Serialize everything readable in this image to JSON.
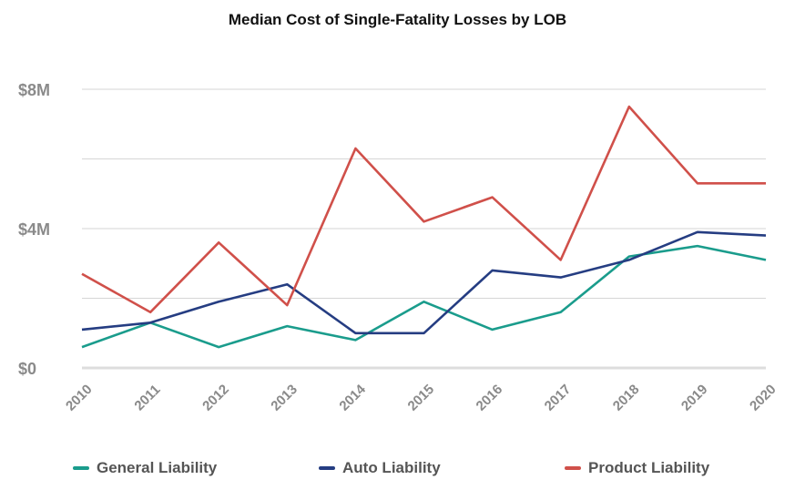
{
  "chart_data": {
    "type": "line",
    "title": "Median Cost of Single-Fatality Losses by LOB",
    "xlabel": "",
    "ylabel": "",
    "categories": [
      "2010",
      "2011",
      "2012",
      "2013",
      "2014",
      "2015",
      "2016",
      "2017",
      "2018",
      "2019",
      "2020"
    ],
    "y_ticks": [
      {
        "value": 0,
        "label": "$0"
      },
      {
        "value": 2,
        "label": ""
      },
      {
        "value": 4,
        "label": "$4M"
      },
      {
        "value": 6,
        "label": ""
      },
      {
        "value": 8,
        "label": "$8M"
      }
    ],
    "ylim": [
      0,
      8
    ],
    "y_unit": "$M",
    "grid": true,
    "legend_position": "bottom",
    "series": [
      {
        "name": "General Liability",
        "color": "#1a9c8c",
        "values": [
          0.6,
          1.3,
          0.6,
          1.2,
          0.8,
          1.9,
          1.1,
          1.6,
          3.2,
          3.5,
          3.1
        ]
      },
      {
        "name": "Auto Liability",
        "color": "#253d82",
        "values": [
          1.1,
          1.3,
          1.9,
          2.4,
          1.0,
          1.0,
          2.8,
          2.6,
          3.1,
          3.9,
          3.8
        ]
      },
      {
        "name": "Product Liability",
        "color": "#d0504a",
        "values": [
          2.7,
          1.6,
          3.6,
          1.8,
          6.3,
          4.2,
          4.9,
          3.1,
          7.5,
          5.3,
          5.3
        ]
      }
    ]
  }
}
